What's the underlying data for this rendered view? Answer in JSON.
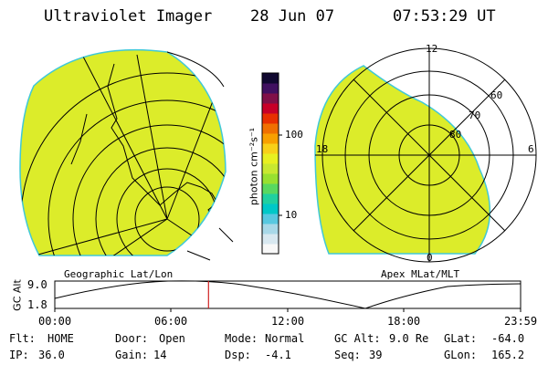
{
  "header": {
    "instrument": "Ultraviolet Imager",
    "date": "28 Jun 07",
    "time": "07:53:29 UT"
  },
  "colorbar": {
    "unit_label": "photon cm⁻²s⁻¹",
    "ticks": [
      "100",
      "10"
    ],
    "colors": [
      "#f8f8f8",
      "#d8e8f0",
      "#a8d8e8",
      "#58c8e0",
      "#00c8c8",
      "#20d0a0",
      "#58d860",
      "#98e030",
      "#c8e830",
      "#e8f020",
      "#f8d018",
      "#f8a000",
      "#f07000",
      "#e83000",
      "#c80028",
      "#801048",
      "#401060",
      "#100830"
    ]
  },
  "left_panel": {
    "label": "Geographic Lat/Lon",
    "fill_color": "#dcec2a"
  },
  "right_panel": {
    "label": "Apex MLat/MLT",
    "fill_color": "#dcec2a",
    "mlt_labels": {
      "top": "12",
      "left": "18",
      "right": "6",
      "bottom": "0"
    },
    "lat_labels": [
      "60",
      "70",
      "80"
    ]
  },
  "altitude_plot": {
    "axis_label": "GC Alt",
    "y_ticks": [
      "9.0",
      "1.8"
    ],
    "x_ticks": [
      "00:00",
      "06:00",
      "12:00",
      "18:00",
      "23:59"
    ],
    "current_time_fraction": 0.33
  },
  "info_rows": [
    [
      {
        "key": "Flt:",
        "value": "HOME"
      },
      {
        "key": "Door:",
        "value": "Open"
      },
      {
        "key": "Mode:",
        "value": "Normal"
      },
      {
        "key": "GC Alt:",
        "value": "9.0 Re"
      },
      {
        "key": "GLat:",
        "value": "-64.0"
      }
    ],
    [
      {
        "key": "IP:",
        "value": "36.0"
      },
      {
        "key": "Gain:",
        "value": "14"
      },
      {
        "key": "Dsp:",
        "value": "-4.1"
      },
      {
        "key": "Seq:",
        "value": "39"
      },
      {
        "key": "GLon:",
        "value": "165.2"
      }
    ]
  ]
}
